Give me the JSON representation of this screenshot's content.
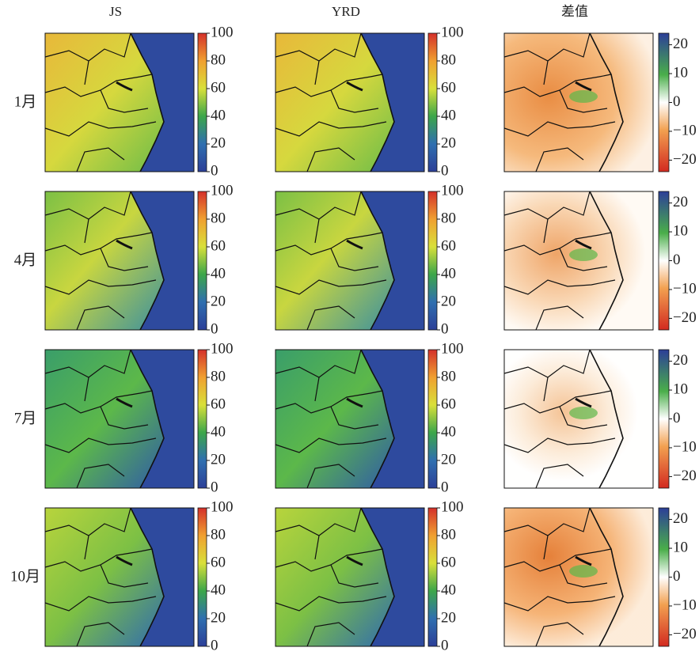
{
  "columns": [
    "JS",
    "YRD",
    "差值"
  ],
  "rows": [
    "1月",
    "4月",
    "7月",
    "10月"
  ],
  "colorbars": {
    "concentration": {
      "clim": [
        0,
        100
      ],
      "ticks": [
        0,
        20,
        40,
        60,
        80,
        100
      ]
    },
    "difference": {
      "clim": [
        -24,
        24
      ],
      "ticks": [
        {
          "value": -20,
          "label": "−20"
        },
        {
          "value": -10,
          "label": "−10"
        },
        0,
        10,
        20
      ]
    }
  }
}
